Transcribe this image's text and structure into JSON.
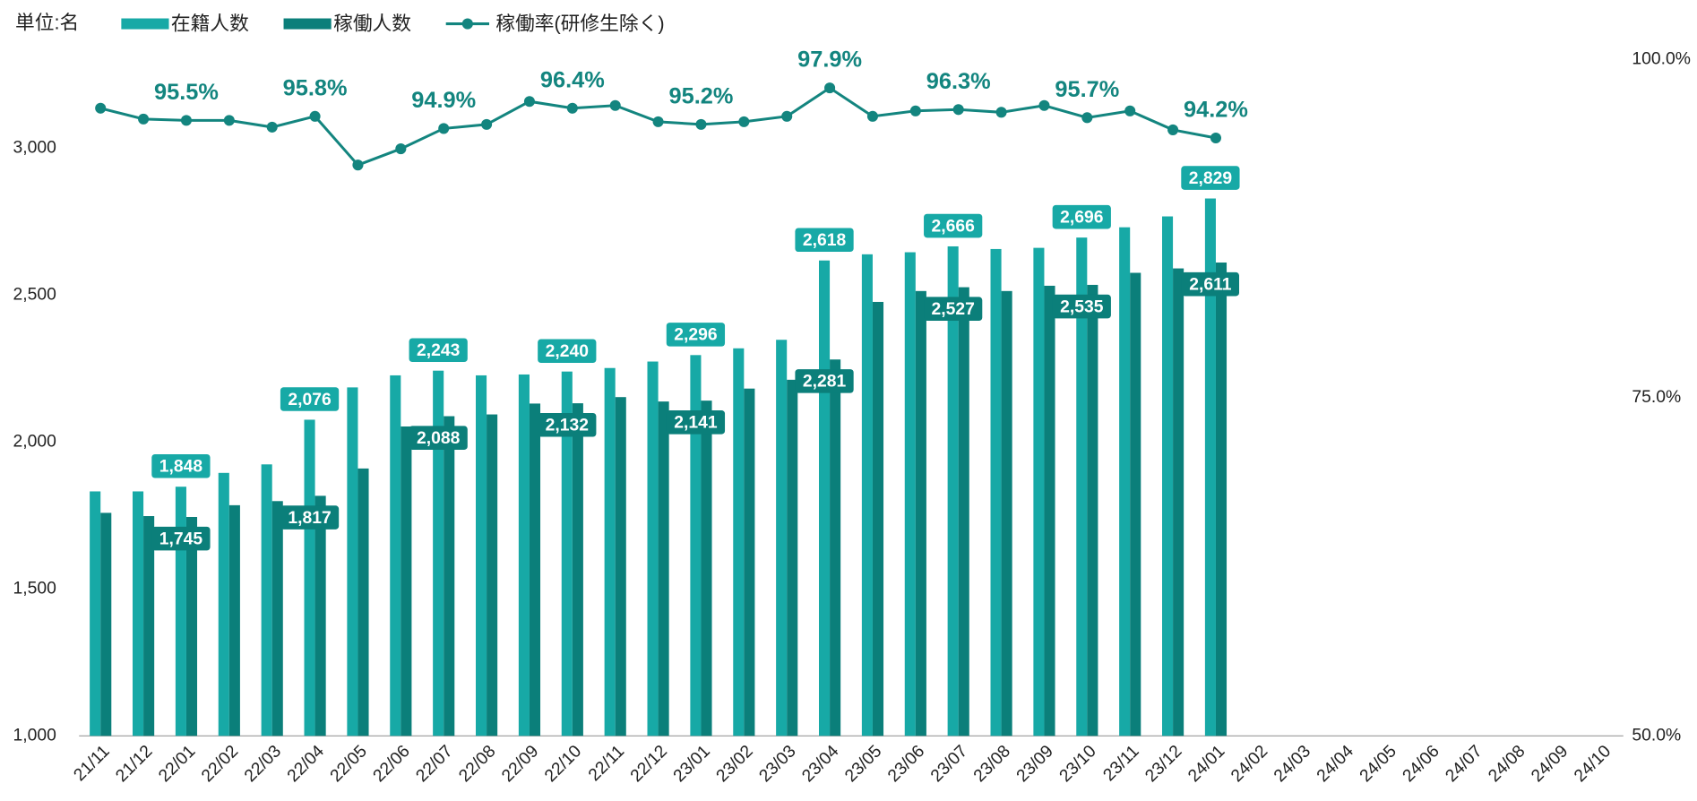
{
  "chart_data": {
    "type": "bar_line",
    "annotations": [
      "単位:名"
    ],
    "categories": [
      "21/11",
      "21/12",
      "22/01",
      "22/02",
      "22/03",
      "22/04",
      "22/05",
      "22/06",
      "22/07",
      "22/08",
      "22/09",
      "22/10",
      "22/11",
      "22/12",
      "23/01",
      "23/02",
      "23/03",
      "23/04",
      "23/05",
      "23/06",
      "23/07",
      "23/08",
      "23/09",
      "23/10",
      "23/11",
      "23/12",
      "24/01",
      "24/02",
      "24/03",
      "24/04",
      "24/05",
      "24/06",
      "24/07",
      "24/08",
      "24/09",
      "24/10"
    ],
    "series": [
      {
        "name": "在籍人数",
        "color": "#17a9a6",
        "kind": "bar",
        "values": [
          1832,
          1832,
          1848,
          1895,
          1924,
          2076,
          2186,
          2227,
          2243,
          2227,
          2230,
          2240,
          2252,
          2274,
          2296,
          2319,
          2348,
          2618,
          2639,
          2646,
          2666,
          2657,
          2661,
          2696,
          2731,
          2768,
          2829,
          null,
          null,
          null,
          null,
          null,
          null,
          null,
          null,
          null
        ],
        "value_labels": [
          null,
          null,
          "1,848",
          null,
          null,
          "2,076",
          null,
          null,
          "2,243",
          null,
          null,
          "2,240",
          null,
          null,
          "2,296",
          null,
          null,
          "2,618",
          null,
          null,
          "2,666",
          null,
          null,
          "2,696",
          null,
          null,
          "2,829",
          null,
          null,
          null,
          null,
          null,
          null,
          null,
          null,
          null
        ]
      },
      {
        "name": "稼働人数",
        "color": "#0b7f7a",
        "kind": "bar",
        "values": [
          1759,
          1748,
          1745,
          1785,
          1799,
          1817,
          1910,
          2053,
          2088,
          2094,
          2131,
          2132,
          2153,
          2138,
          2141,
          2182,
          2212,
          2281,
          2477,
          2514,
          2527,
          2514,
          2532,
          2535,
          2576,
          2591,
          2611,
          null,
          null,
          null,
          null,
          null,
          null,
          null,
          null,
          null
        ],
        "value_labels": [
          null,
          null,
          "1,745",
          null,
          null,
          "1,817",
          null,
          null,
          "2,088",
          null,
          null,
          "2,132",
          null,
          null,
          "2,141",
          null,
          null,
          "2,281",
          null,
          null,
          "2,527",
          null,
          null,
          "2,535",
          null,
          null,
          "2,611",
          null,
          null,
          null,
          null,
          null,
          null,
          null,
          null,
          null
        ]
      },
      {
        "name": "稼働率(研修生除く)",
        "color": "#13857f",
        "kind": "line",
        "axis": "y2",
        "values": [
          96.4,
          95.6,
          95.5,
          95.5,
          95.0,
          95.8,
          92.2,
          93.4,
          94.9,
          95.2,
          96.9,
          96.4,
          96.6,
          95.4,
          95.2,
          95.4,
          95.8,
          97.9,
          95.8,
          96.2,
          96.3,
          96.1,
          96.6,
          95.7,
          96.2,
          94.8,
          94.2,
          null,
          null,
          null,
          null,
          null,
          null,
          null,
          null,
          null
        ],
        "value_labels": [
          null,
          null,
          "95.5%",
          null,
          null,
          "95.8%",
          null,
          null,
          "94.9%",
          null,
          null,
          "96.4%",
          null,
          null,
          "95.2%",
          null,
          null,
          "97.9%",
          null,
          null,
          "96.3%",
          null,
          null,
          "95.7%",
          null,
          null,
          "94.2%",
          null,
          null,
          null,
          null,
          null,
          null,
          null,
          null,
          null
        ]
      }
    ],
    "ylim": [
      1000,
      3302
    ],
    "yticks": [
      {
        "value": 1000,
        "label": "1,000"
      },
      {
        "value": 1500,
        "label": "1,500"
      },
      {
        "value": 2000,
        "label": "2,000"
      },
      {
        "value": 2500,
        "label": "2,500"
      },
      {
        "value": 3000,
        "label": "3,000"
      }
    ],
    "y2lim": [
      50,
      100
    ],
    "y2ticks": [
      {
        "value": 50,
        "label": "50.0%"
      },
      {
        "value": 75,
        "label": "75.0%"
      },
      {
        "value": 100,
        "label": "100.0%"
      }
    ],
    "legend": "top",
    "grid": false
  }
}
